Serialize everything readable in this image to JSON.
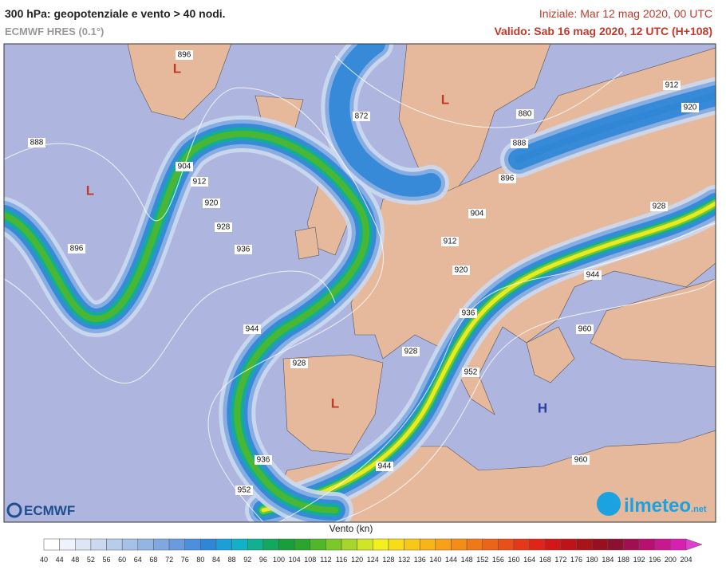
{
  "header": {
    "title": "300 hPa: geopotenziale e vento > 40 nodi.",
    "model": "ECMWF HRES (0.1°)",
    "init": "Iniziale: Mar 12 mag 2020, 00 UTC",
    "valid": "Valido: Sab 16 mag 2020, 12 UTC (H+108)"
  },
  "map": {
    "contour_labels": [
      896,
      888,
      904,
      912,
      920,
      928,
      896,
      936,
      944,
      928,
      928,
      936,
      952,
      944,
      872,
      880,
      888,
      896,
      904,
      912,
      920,
      936,
      952,
      960,
      944,
      928,
      912,
      920,
      960
    ],
    "centers": [
      "L",
      "L",
      "L",
      "L",
      "H"
    ]
  },
  "legend": {
    "title": "Vento (kn)",
    "ticks": [
      40,
      44,
      48,
      52,
      56,
      60,
      64,
      68,
      72,
      76,
      80,
      84,
      88,
      92,
      96,
      100,
      104,
      108,
      112,
      116,
      120,
      124,
      128,
      132,
      136,
      140,
      144,
      148,
      152,
      156,
      160,
      164,
      168,
      172,
      176,
      180,
      184,
      188,
      192,
      196,
      200,
      204
    ],
    "colors": [
      "#ffffff",
      "#eef2fa",
      "#dde6f5",
      "#cbd9f0",
      "#b8cdec",
      "#a6c1e8",
      "#93b5e4",
      "#7fa8e0",
      "#6a9bde",
      "#4a90dc",
      "#2f86d6",
      "#1c9fd8",
      "#10b2c8",
      "#10b090",
      "#13a860",
      "#1a9e3c",
      "#2aa630",
      "#50b828",
      "#7cc828",
      "#a6d62a",
      "#d0e428",
      "#f4f020",
      "#f8dc18",
      "#f8c818",
      "#f8b418",
      "#f8a018",
      "#f48c18",
      "#f07818",
      "#ec6418",
      "#e85018",
      "#e43818",
      "#e02418",
      "#d01818",
      "#bc1418",
      "#a81418",
      "#981020",
      "#8c1030",
      "#a01050",
      "#b81070",
      "#c81890",
      "#d820b0",
      "#e040d0"
    ]
  },
  "logos": {
    "ecmwf": "ECMWF",
    "ilmeteo": "ilmeteo",
    "ilmeteo_suffix": ".net"
  }
}
